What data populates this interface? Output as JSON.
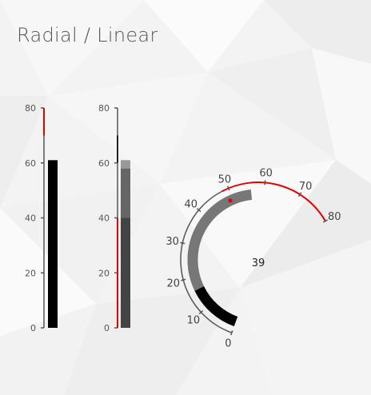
{
  "title": "Radial / Linear",
  "colors": {
    "range": "#e00000",
    "axis": "#555555",
    "value": "#000000",
    "secondary": "#777777",
    "band_dark": "#444444",
    "band_mid": "#666666",
    "band_light": "#999999"
  },
  "linear_gauge_1": {
    "min": 0,
    "max": 80,
    "ticks": [
      "0",
      "20",
      "40",
      "60",
      "80"
    ],
    "value": 61,
    "range_start": 70,
    "range_end": 80
  },
  "linear_gauge_2": {
    "min": 0,
    "max": 80,
    "ticks": [
      "0",
      "20",
      "40",
      "60",
      "80"
    ],
    "range_start": 0,
    "range_end": 40,
    "marker": 70,
    "bands": [
      {
        "from": 0,
        "to": 40,
        "tone": "dark"
      },
      {
        "from": 40,
        "to": 58,
        "tone": "mid"
      },
      {
        "from": 58,
        "to": 61,
        "tone": "light"
      }
    ]
  },
  "radial_gauge": {
    "min": 0,
    "max": 80,
    "ticks": [
      "0",
      "10",
      "20",
      "30",
      "40",
      "50",
      "60",
      "70",
      "80"
    ],
    "value": 39,
    "value_label": "39",
    "primary_from": 0,
    "primary_to": 16,
    "secondary_from": 16,
    "secondary_to": 56,
    "range_start": 48,
    "range_end": 80,
    "marker": 49
  }
}
